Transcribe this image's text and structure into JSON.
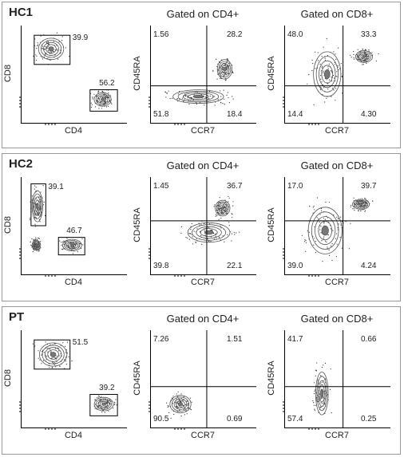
{
  "chart_data": [
    {
      "row": "HC1",
      "panels": [
        {
          "type": "scatter",
          "title": "",
          "xlabel": "CD4",
          "ylabel": "CD8",
          "kind": "gate",
          "gates": [
            {
              "name": "cd8-gate",
              "value": "39.9"
            },
            {
              "name": "cd4-gate",
              "value": "56.2"
            }
          ],
          "pops": [
            {
              "cx": 0.28,
              "cy": 0.76,
              "rx": 0.12,
              "ry": 0.11
            },
            {
              "cx": 0.77,
              "cy": 0.24,
              "rx": 0.08,
              "ry": 0.07
            }
          ]
        },
        {
          "type": "scatter",
          "title": "Gated on CD4+",
          "xlabel": "CCR7",
          "ylabel": "CD45RA",
          "kind": "quad",
          "quad": {
            "tl": "1.56",
            "tr": "28.2",
            "bl": "51.8",
            "br": "18.4"
          },
          "pops": [
            {
              "cx": 0.45,
              "cy": 0.27,
              "rx": 0.24,
              "ry": 0.07
            },
            {
              "cx": 0.7,
              "cy": 0.55,
              "rx": 0.07,
              "ry": 0.1
            }
          ]
        },
        {
          "type": "scatter",
          "title": "Gated on CD8+",
          "xlabel": "CCR7",
          "ylabel": "CD45RA",
          "kind": "quad",
          "quad": {
            "tl": "48.0",
            "tr": "33.3",
            "bl": "14.4",
            "br": "4.30"
          },
          "pops": [
            {
              "cx": 0.4,
              "cy": 0.5,
              "rx": 0.13,
              "ry": 0.23
            },
            {
              "cx": 0.75,
              "cy": 0.68,
              "rx": 0.08,
              "ry": 0.06
            }
          ]
        }
      ]
    },
    {
      "row": "HC2",
      "panels": [
        {
          "type": "scatter",
          "title": "",
          "xlabel": "CD4",
          "ylabel": "CD8",
          "kind": "gate",
          "gates": [
            {
              "name": "cd8-gate",
              "value": "39.1"
            },
            {
              "name": "cd4-gate",
              "value": "46.7"
            }
          ],
          "pops": [
            {
              "cx": 0.15,
              "cy": 0.7,
              "rx": 0.05,
              "ry": 0.16
            },
            {
              "cx": 0.48,
              "cy": 0.3,
              "rx": 0.09,
              "ry": 0.06
            },
            {
              "cx": 0.14,
              "cy": 0.3,
              "rx": 0.04,
              "ry": 0.05
            }
          ]
        },
        {
          "type": "scatter",
          "title": "Gated on CD4+",
          "xlabel": "CCR7",
          "ylabel": "CD45RA",
          "kind": "quad",
          "quad": {
            "tl": "1.45",
            "tr": "36.7",
            "bl": "39.8",
            "br": "22.1"
          },
          "pops": [
            {
              "cx": 0.55,
              "cy": 0.43,
              "rx": 0.2,
              "ry": 0.1
            },
            {
              "cx": 0.68,
              "cy": 0.68,
              "rx": 0.07,
              "ry": 0.08
            }
          ]
        },
        {
          "type": "scatter",
          "title": "Gated on CD8+",
          "xlabel": "CCR7",
          "ylabel": "CD45RA",
          "kind": "quad",
          "quad": {
            "tl": "17.0",
            "tr": "39.7",
            "bl": "39.0",
            "br": "4.24"
          },
          "pops": [
            {
              "cx": 0.38,
              "cy": 0.45,
              "rx": 0.16,
              "ry": 0.24
            },
            {
              "cx": 0.72,
              "cy": 0.72,
              "rx": 0.08,
              "ry": 0.05
            }
          ]
        }
      ]
    },
    {
      "row": "PT",
      "panels": [
        {
          "type": "scatter",
          "title": "",
          "xlabel": "CD4",
          "ylabel": "CD8",
          "kind": "gate",
          "gates": [
            {
              "name": "cd8-gate",
              "value": "51.5"
            },
            {
              "name": "cd4-gate",
              "value": "39.2"
            }
          ],
          "pops": [
            {
              "cx": 0.3,
              "cy": 0.75,
              "rx": 0.13,
              "ry": 0.12
            },
            {
              "cx": 0.78,
              "cy": 0.24,
              "rx": 0.09,
              "ry": 0.07
            }
          ]
        },
        {
          "type": "scatter",
          "title": "Gated on CD4+",
          "xlabel": "CCR7",
          "ylabel": "CD45RA",
          "kind": "quad",
          "quad": {
            "tl": "7.26",
            "tr": "1.51",
            "bl": "90.5",
            "br": "0.69"
          },
          "pops": [
            {
              "cx": 0.28,
              "cy": 0.24,
              "rx": 0.1,
              "ry": 0.09
            }
          ]
        },
        {
          "type": "scatter",
          "title": "Gated on CD8+",
          "xlabel": "CCR7",
          "ylabel": "CD45RA",
          "kind": "quad",
          "quad": {
            "tl": "41.7",
            "tr": "0.66",
            "bl": "57.4",
            "br": "0.25"
          },
          "pops": [
            {
              "cx": 0.35,
              "cy": 0.35,
              "rx": 0.06,
              "ry": 0.22
            }
          ]
        }
      ]
    }
  ],
  "colors": {
    "contour": "#555555",
    "dots": "#333333",
    "lines": "#000000"
  }
}
